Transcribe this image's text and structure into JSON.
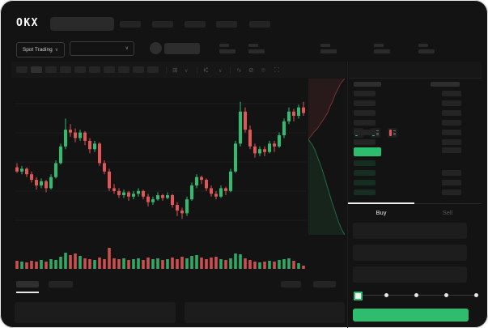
{
  "app": {
    "logo_text": "OKX"
  },
  "header": {
    "search_placeholder_skeleton": true,
    "nav_slots": 5
  },
  "subheader": {
    "market_selector_label": "Spot Trading",
    "chevron_glyph": "∨",
    "stat_groups": 5
  },
  "chart_toolbar": {
    "timeframe_slots": 10,
    "icons": [
      {
        "name": "candle-type-icon",
        "glyph": "⊞"
      },
      {
        "name": "chevron-down-icon",
        "glyph": "∨"
      },
      {
        "name": "interval-icon",
        "glyph": "⑆"
      },
      {
        "name": "chevron-down-icon",
        "glyph": "∨"
      },
      {
        "name": "indicators-icon",
        "glyph": "∿"
      },
      {
        "name": "draw-icon",
        "glyph": "⊘"
      },
      {
        "name": "camera-icon",
        "glyph": "⌾"
      },
      {
        "name": "fullscreen-icon",
        "glyph": "⛶"
      }
    ]
  },
  "order_book": {
    "view_icons": [
      {
        "name": "book-combined-icon",
        "top_color": "#e25555",
        "bottom_color": "#2ebd6e"
      },
      {
        "name": "book-bids-icon",
        "top_color": "#2ebd6e",
        "bottom_color": "#2ebd6e"
      },
      {
        "name": "book-asks-icon",
        "top_color": "#e25555",
        "bottom_color": "#e25555"
      }
    ],
    "header_row": {
      "amount": true
    },
    "ask_rows": [
      {
        "amount": true
      },
      {
        "amount": true
      },
      {
        "amount": true
      },
      {
        "amount": true
      },
      {
        "amount": true
      },
      {
        "amount": true
      }
    ],
    "last_price_row": {
      "highlight_color": "#2ebd6e",
      "amount": true
    },
    "bid_rows": [
      {
        "amount": false
      },
      {
        "amount": true
      },
      {
        "amount": true
      },
      {
        "amount": true
      }
    ],
    "bid_tint": "rgba(46,189,110,0.16)"
  },
  "trade_panel": {
    "tabs": [
      {
        "label": "Buy",
        "active": true
      },
      {
        "label": "Sell",
        "active": false
      }
    ],
    "input_slots": 3,
    "slider": {
      "stops": 5,
      "active_stop": 0,
      "accent": "#2ebd6e"
    },
    "submit_button": {
      "label": "",
      "color": "#2ebd6e"
    }
  },
  "bottom_tabs": {
    "left_slots": 2,
    "right_slots": 2,
    "active_index": 0
  },
  "colors": {
    "up": "#2ebd70",
    "down": "#e25555",
    "background": "#131313",
    "accent_green": "#2ebd6e"
  },
  "chart_data": [
    {
      "type": "candlestick",
      "title": "",
      "xlabel": "",
      "ylabel": "",
      "axis_labels_visible": false,
      "grid": "faint horizontal lines",
      "price_scale": [
        0,
        100
      ],
      "candles_ohlc": [
        [
          45,
          48,
          41,
          42
        ],
        [
          42,
          46,
          40,
          44
        ],
        [
          44,
          45,
          38,
          40
        ],
        [
          40,
          42,
          34,
          36
        ],
        [
          36,
          38,
          29,
          32
        ],
        [
          32,
          37,
          30,
          35
        ],
        [
          35,
          36,
          27,
          30
        ],
        [
          30,
          40,
          29,
          38
        ],
        [
          38,
          50,
          37,
          48
        ],
        [
          48,
          62,
          47,
          60
        ],
        [
          60,
          80,
          58,
          72
        ],
        [
          72,
          76,
          67,
          70
        ],
        [
          70,
          73,
          63,
          66
        ],
        [
          66,
          72,
          64,
          70
        ],
        [
          70,
          71,
          61,
          64
        ],
        [
          64,
          66,
          55,
          58
        ],
        [
          58,
          64,
          56,
          62
        ],
        [
          62,
          63,
          46,
          48
        ],
        [
          48,
          50,
          40,
          42
        ],
        [
          42,
          44,
          28,
          30
        ],
        [
          30,
          33,
          26,
          28
        ],
        [
          28,
          30,
          23,
          25
        ],
        [
          25,
          29,
          23,
          27
        ],
        [
          27,
          28,
          21,
          24
        ],
        [
          24,
          28,
          22,
          26
        ],
        [
          26,
          30,
          24,
          28
        ],
        [
          28,
          29,
          22,
          24
        ],
        [
          24,
          26,
          17,
          20
        ],
        [
          20,
          24,
          18,
          22
        ],
        [
          22,
          27,
          21,
          25
        ],
        [
          25,
          26,
          21,
          23
        ],
        [
          23,
          27,
          22,
          25
        ],
        [
          25,
          26,
          16,
          18
        ],
        [
          18,
          20,
          10,
          14
        ],
        [
          14,
          16,
          8,
          12
        ],
        [
          12,
          24,
          10,
          22
        ],
        [
          22,
          34,
          21,
          32
        ],
        [
          32,
          40,
          30,
          38
        ],
        [
          38,
          39,
          33,
          36
        ],
        [
          36,
          37,
          28,
          30
        ],
        [
          30,
          32,
          24,
          26
        ],
        [
          26,
          28,
          22,
          24
        ],
        [
          24,
          32,
          23,
          30
        ],
        [
          30,
          31,
          25,
          28
        ],
        [
          28,
          44,
          27,
          42
        ],
        [
          42,
          64,
          41,
          62
        ],
        [
          62,
          92,
          60,
          85
        ],
        [
          85,
          88,
          70,
          72
        ],
        [
          72,
          75,
          58,
          60
        ],
        [
          60,
          62,
          52,
          55
        ],
        [
          55,
          60,
          53,
          58
        ],
        [
          58,
          60,
          53,
          56
        ],
        [
          56,
          64,
          55,
          62
        ],
        [
          62,
          64,
          56,
          60
        ],
        [
          60,
          70,
          59,
          68
        ],
        [
          68,
          80,
          66,
          78
        ],
        [
          78,
          88,
          76,
          85
        ],
        [
          85,
          87,
          78,
          82
        ],
        [
          82,
          90,
          80,
          88
        ],
        [
          88,
          92,
          82,
          84
        ]
      ],
      "volume": [
        10,
        9,
        8,
        10,
        9,
        11,
        9,
        12,
        11,
        15,
        20,
        17,
        19,
        16,
        13,
        12,
        11,
        14,
        12,
        26,
        13,
        12,
        13,
        11,
        12,
        13,
        11,
        14,
        12,
        13,
        11,
        12,
        14,
        12,
        15,
        13,
        16,
        17,
        14,
        12,
        14,
        15,
        12,
        11,
        13,
        19,
        18,
        13,
        11,
        9,
        8,
        9,
        10,
        9,
        11,
        12,
        13,
        10,
        7,
        4
      ],
      "colors": {
        "up": "#2ebd70",
        "down": "#e25555"
      }
    },
    {
      "type": "area",
      "subtype": "orderbook-depth",
      "orientation": "vertical",
      "asks_steps": [
        [
          45,
          0
        ],
        [
          40,
          6
        ],
        [
          37,
          12
        ],
        [
          33,
          20
        ],
        [
          30,
          28
        ],
        [
          27,
          34
        ],
        [
          24,
          42
        ],
        [
          19,
          50
        ],
        [
          15,
          56
        ],
        [
          11,
          62
        ],
        [
          7,
          66
        ],
        [
          4,
          70
        ],
        [
          0,
          75
        ]
      ],
      "bids_steps": [
        [
          0,
          75
        ],
        [
          5,
          82
        ],
        [
          8,
          88
        ],
        [
          11,
          96
        ],
        [
          14,
          104
        ],
        [
          17,
          112
        ],
        [
          20,
          122
        ],
        [
          23,
          132
        ],
        [
          26,
          142
        ],
        [
          29,
          152
        ],
        [
          33,
          164
        ],
        [
          37,
          176
        ],
        [
          41,
          186
        ],
        [
          45,
          193
        ]
      ],
      "asks_fill": "rgba(226,85,85,0.10)",
      "bids_fill": "rgba(46,189,110,0.10)",
      "asks_line": "rgba(226,85,85,0.45)",
      "bids_line": "rgba(46,189,110,0.50)"
    }
  ]
}
